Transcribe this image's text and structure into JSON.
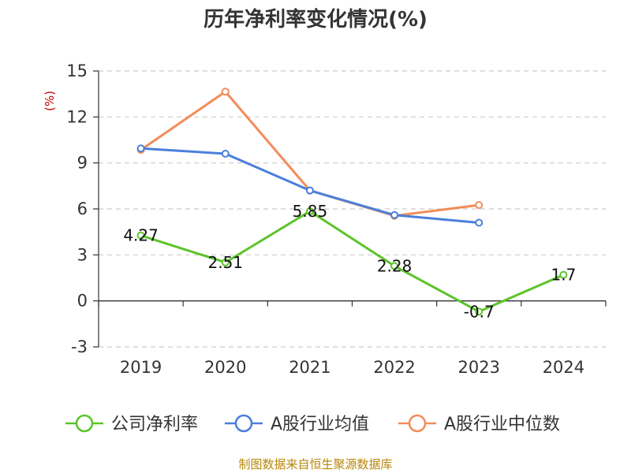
{
  "chart_data": {
    "type": "line",
    "title": "历年净利率变化情况(%)",
    "ylabel": "(%)",
    "xlabel": "",
    "categories": [
      "2019",
      "2020",
      "2021",
      "2022",
      "2023",
      "2024"
    ],
    "ylim": [
      -3,
      15
    ],
    "yticks": [
      -3,
      0,
      3,
      6,
      9,
      12,
      15
    ],
    "grid": true,
    "legend_position": "bottom",
    "series": [
      {
        "name": "公司净利率",
        "color": "#5cc42a",
        "values": [
          4.27,
          2.51,
          5.85,
          2.28,
          -0.7,
          1.7
        ],
        "labels": [
          "4.27",
          "2.51",
          "5.85",
          "2.28",
          "-0.7",
          "1.7"
        ]
      },
      {
        "name": "A股行业均值",
        "color": "#4a7fdc",
        "values": [
          9.95,
          9.6,
          7.2,
          5.6,
          5.1,
          null
        ]
      },
      {
        "name": "A股行业中位数",
        "color": "#f28c5a",
        "values": [
          9.85,
          13.65,
          7.2,
          5.55,
          6.25,
          null
        ]
      }
    ]
  },
  "source": "制图数据来自恒生聚源数据库"
}
